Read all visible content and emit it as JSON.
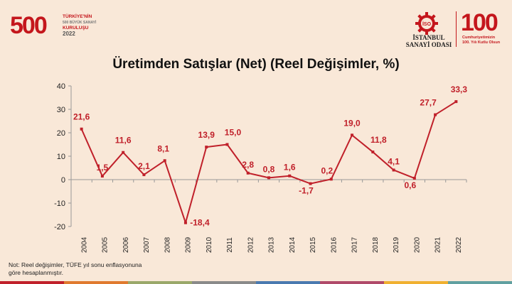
{
  "header": {
    "left_logo": {
      "number": "500",
      "line1": "TÜRKİYE'NİN",
      "line2": "500 BÜYÜK SANAYİ",
      "line3": "KURULUŞU",
      "year": "2022"
    },
    "iso_logo": {
      "line1": "İSTANBUL",
      "line2": "SANAYİ ODASI",
      "badge": "İSO"
    },
    "right_logo": {
      "number": "100",
      "line1": "Cumhuriyetimizin",
      "line2": "100. Yılı Kutlu Olsun"
    }
  },
  "colors": {
    "series": "#c0202a",
    "background": "#f9e8d8",
    "axis": "#999999"
  },
  "chart_data": {
    "type": "line",
    "title": "Üretimden Satışlar (Net) (Reel Değişimler, %)",
    "xlabel": "",
    "ylabel": "",
    "ylim": [
      -20,
      40
    ],
    "yticks": [
      -20,
      -10,
      0,
      10,
      20,
      30,
      40
    ],
    "grid": false,
    "categories": [
      "2004",
      "2005",
      "2006",
      "2007",
      "2008",
      "2009",
      "2010",
      "2011",
      "2012",
      "2013",
      "2014",
      "2015",
      "2016",
      "2017",
      "2018",
      "2019",
      "2020",
      "2021",
      "2022"
    ],
    "series": [
      {
        "values": [
          21.6,
          1.5,
          11.6,
          2.1,
          8.1,
          -18.4,
          13.9,
          15.0,
          2.8,
          0.8,
          1.6,
          -1.7,
          0.2,
          19.0,
          11.8,
          4.1,
          0.6,
          27.7,
          33.3
        ]
      }
    ],
    "data_labels": [
      "21,6",
      "1,5",
      "11,6",
      "2,1",
      "8,1",
      "-18,4",
      "13,9",
      "15,0",
      "2,8",
      "0,8",
      "1,6",
      "-1,7",
      "0,2",
      "19,0",
      "11,8",
      "4,1",
      "0,6",
      "27,7",
      "33,3"
    ],
    "ytick_labels": [
      "-20",
      "-10",
      "0",
      "10",
      "20",
      "30",
      "40"
    ]
  },
  "note": "Not: Reel değişimler, TÜFE yıl sonu enflasyonuna göre hesaplanmıştır.",
  "bottom_bar_colors": [
    "#c0202a",
    "#e07a2e",
    "#9aa86a",
    "#8a8a8a",
    "#4a7ab0",
    "#b04a6a",
    "#f0b030",
    "#60a0a0"
  ]
}
